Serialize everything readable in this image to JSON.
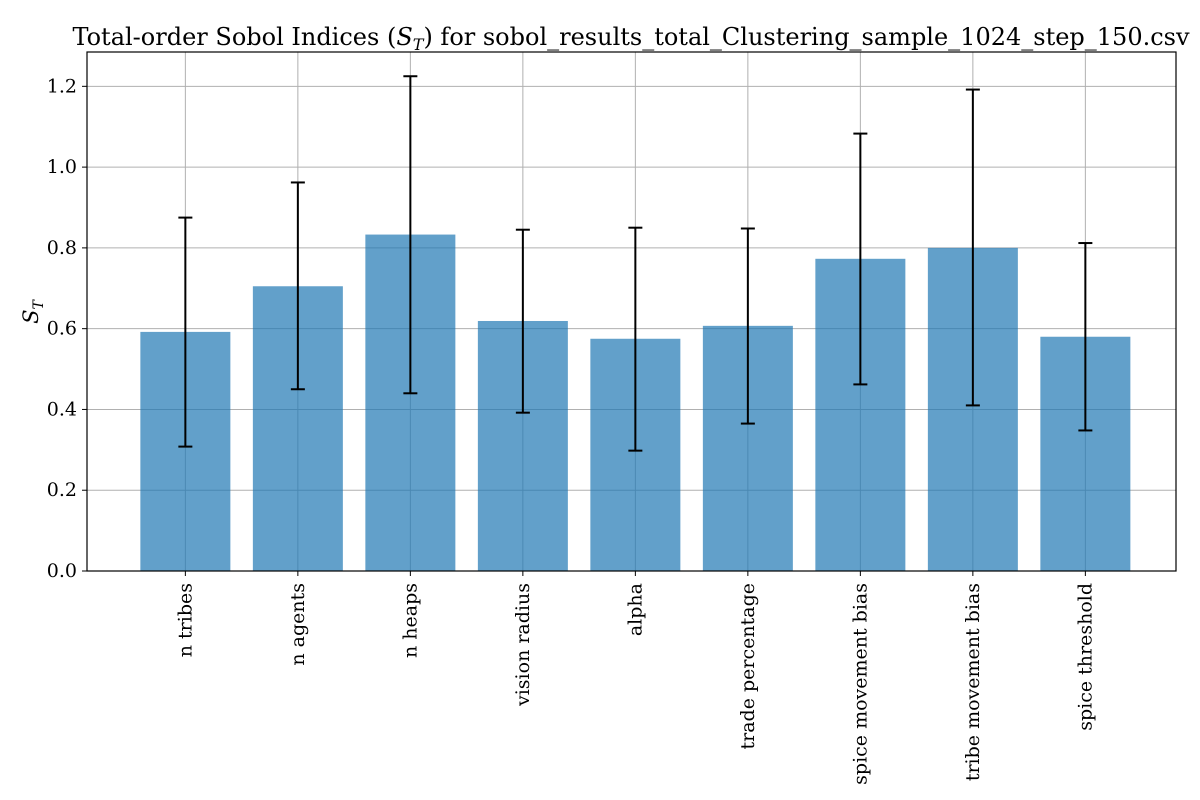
{
  "chart_data": {
    "type": "bar",
    "title": "Total-order Sobol Indices (",
    "title_symbol": "S",
    "title_symbol_sub": "T",
    "title_suffix": ") for sobol_results_total_Clustering_sample_1024_step_150.csv",
    "ylabel": "S",
    "ylabel_sub": "T",
    "xlabel": "",
    "categories": [
      "n_tribes",
      "n_agents",
      "n_heaps",
      "vision_radius",
      "alpha",
      "trade_percentage",
      "spice_movement_bias",
      "tribe_movement_bias",
      "spice_threshold"
    ],
    "category_labels": [
      "n tribes",
      "n agents",
      "n heaps",
      "vision radius",
      "alpha",
      "trade percentage",
      "spice movement bias",
      "tribe movement bias",
      "spice threshold"
    ],
    "values": [
      0.592,
      0.705,
      0.833,
      0.619,
      0.575,
      0.607,
      0.773,
      0.8,
      0.58
    ],
    "error_low": [
      0.308,
      0.45,
      0.44,
      0.392,
      0.298,
      0.365,
      0.462,
      0.41,
      0.348
    ],
    "error_high": [
      0.875,
      0.962,
      1.225,
      0.845,
      0.85,
      0.848,
      1.083,
      1.192,
      0.812
    ],
    "yticks": [
      "0.0",
      "0.2",
      "0.4",
      "0.6",
      "0.8",
      "1.0",
      "1.2"
    ],
    "ytick_values": [
      0,
      0.2,
      0.4,
      0.6,
      0.8,
      1.0,
      1.2
    ],
    "ylim": [
      0,
      1.285
    ],
    "grid": true,
    "colors": {
      "bar": "#1f77b4",
      "grid": "#b0b0b0",
      "error": "#000000"
    }
  }
}
